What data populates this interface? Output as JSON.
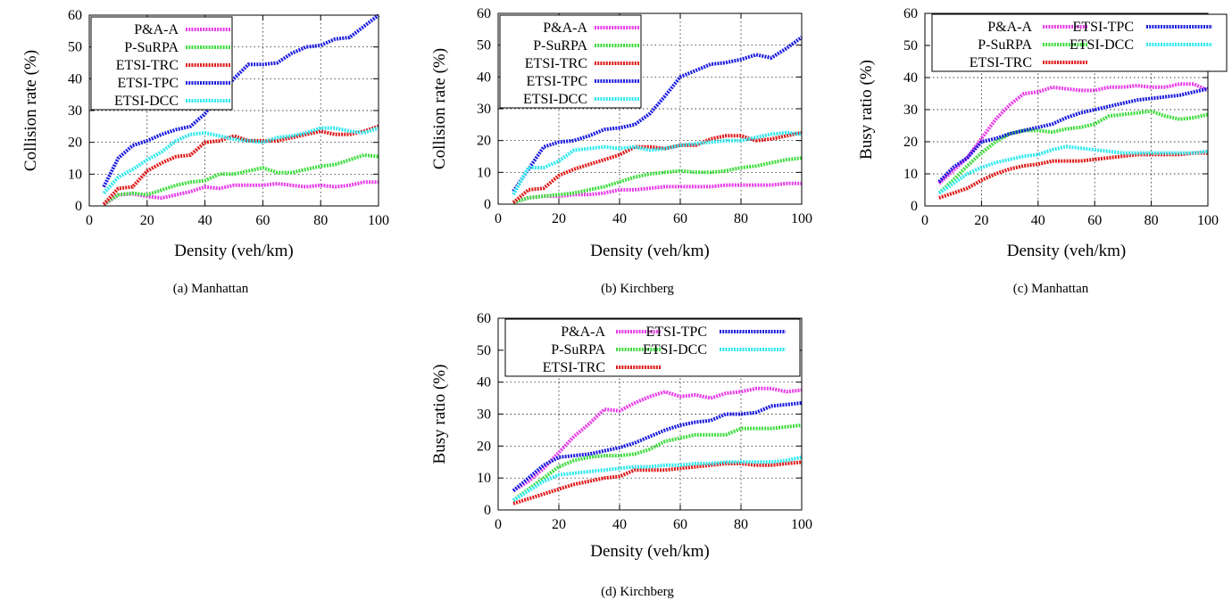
{
  "colors": {
    "P&A-A": "#e83be8",
    "P-SuRPA": "#3fdc3f",
    "ETSI-TRC": "#e01818",
    "ETSI-TPC": "#1a1adf",
    "ETSI-DCC": "#2fe8ee"
  },
  "chart_data": [
    {
      "type": "line",
      "caption": "(a) Manhattan",
      "xlabel": "Density (veh/km)",
      "ylabel": "Collision rate (%)",
      "xlim": [
        0,
        100
      ],
      "ylim": [
        0,
        60
      ],
      "xticks": [
        "0",
        "20",
        "40",
        "60",
        "80",
        "100"
      ],
      "yticks": [
        "0",
        "10",
        "20",
        "30",
        "40",
        "50",
        "60"
      ],
      "grid": true,
      "legend": "top-left, single column",
      "x": [
        5,
        10,
        15,
        20,
        25,
        30,
        35,
        40,
        45,
        50,
        55,
        60,
        65,
        70,
        75,
        80,
        85,
        90,
        95,
        100
      ],
      "series": [
        {
          "name": "P&A-A",
          "values": [
            0.3,
            3.5,
            3.8,
            3.0,
            2.5,
            3.5,
            4.5,
            6.0,
            5.5,
            6.5,
            6.5,
            6.5,
            7.0,
            6.5,
            6.0,
            6.5,
            6.0,
            6.5,
            7.5,
            7.5
          ]
        },
        {
          "name": "P-SuRPA",
          "values": [
            0.5,
            3.5,
            4.0,
            3.5,
            5.0,
            6.5,
            7.5,
            8.0,
            10.0,
            10.0,
            11.0,
            12.0,
            10.5,
            10.5,
            11.5,
            12.5,
            13.0,
            14.5,
            16.0,
            15.5
          ]
        },
        {
          "name": "ETSI-TRC",
          "values": [
            0.5,
            5.5,
            6.0,
            11.0,
            13.5,
            15.5,
            16.0,
            20.0,
            20.5,
            22.0,
            20.5,
            20.5,
            20.5,
            21.5,
            22.5,
            23.5,
            22.5,
            22.5,
            23.5,
            25.0
          ]
        },
        {
          "name": "ETSI-TPC",
          "values": [
            6.0,
            15.0,
            19.0,
            20.5,
            22.5,
            24.0,
            25.0,
            29.0,
            35.0,
            40.0,
            44.5,
            44.5,
            45.0,
            48.0,
            50.0,
            50.5,
            52.5,
            53.0,
            56.5,
            60.0
          ]
        },
        {
          "name": "ETSI-DCC",
          "values": [
            4.0,
            9.0,
            11.5,
            14.5,
            17.0,
            20.5,
            22.5,
            23.0,
            22.0,
            21.0,
            20.5,
            20.0,
            21.5,
            22.0,
            23.0,
            24.5,
            24.5,
            23.5,
            23.0,
            24.5
          ]
        }
      ]
    },
    {
      "type": "line",
      "caption": "(b) Kirchberg",
      "xlabel": "Density (veh/km)",
      "ylabel": "Collision rate (%)",
      "xlim": [
        0,
        100
      ],
      "ylim": [
        0,
        60
      ],
      "xticks": [
        "0",
        "20",
        "40",
        "60",
        "80",
        "100"
      ],
      "yticks": [
        "0",
        "10",
        "20",
        "30",
        "40",
        "50",
        "60"
      ],
      "grid": true,
      "legend": "top-left, single column",
      "x": [
        5,
        10,
        15,
        20,
        25,
        30,
        35,
        40,
        45,
        50,
        55,
        60,
        65,
        70,
        75,
        80,
        85,
        90,
        95,
        100
      ],
      "series": [
        {
          "name": "P&A-A",
          "values": [
            0.5,
            2.0,
            2.5,
            2.5,
            3.0,
            3.0,
            3.5,
            4.5,
            4.5,
            5.0,
            5.5,
            5.5,
            5.5,
            5.5,
            6.0,
            6.0,
            6.0,
            6.0,
            6.5,
            6.5
          ]
        },
        {
          "name": "P-SuRPA",
          "values": [
            0.5,
            2.0,
            2.5,
            3.0,
            3.5,
            4.5,
            5.5,
            7.0,
            8.5,
            9.5,
            10.0,
            10.5,
            10.0,
            10.0,
            10.5,
            11.5,
            12.0,
            13.0,
            14.0,
            14.5
          ]
        },
        {
          "name": "ETSI-TRC",
          "values": [
            0.5,
            4.5,
            5.0,
            9.0,
            11.0,
            12.5,
            14.0,
            15.5,
            18.0,
            18.0,
            17.5,
            18.5,
            18.5,
            20.5,
            21.5,
            21.5,
            20.0,
            20.5,
            21.5,
            22.5
          ]
        },
        {
          "name": "ETSI-TPC",
          "values": [
            4.0,
            11.0,
            18.0,
            19.5,
            20.0,
            21.5,
            23.5,
            24.0,
            25.0,
            28.5,
            34.0,
            40.0,
            42.0,
            44.0,
            44.5,
            45.5,
            47.0,
            46.0,
            49.0,
            52.5
          ]
        },
        {
          "name": "ETSI-DCC",
          "values": [
            3.0,
            11.5,
            11.5,
            13.5,
            17.0,
            17.5,
            18.0,
            17.5,
            18.0,
            17.0,
            17.5,
            18.5,
            19.0,
            19.5,
            20.0,
            20.0,
            21.0,
            22.0,
            22.5,
            22.0
          ]
        }
      ]
    },
    {
      "type": "line",
      "caption": "(c) Manhattan",
      "xlabel": "Density (veh/km)",
      "ylabel": "Busy ratio (%)",
      "xlim": [
        0,
        100
      ],
      "ylim": [
        0,
        60
      ],
      "xticks": [
        "0",
        "20",
        "40",
        "60",
        "80",
        "100"
      ],
      "yticks": [
        "0",
        "10",
        "20",
        "30",
        "40",
        "50",
        "60"
      ],
      "grid": true,
      "legend": "top, two columns",
      "x": [
        5,
        10,
        15,
        20,
        25,
        30,
        35,
        40,
        45,
        50,
        55,
        60,
        65,
        70,
        75,
        80,
        85,
        90,
        95,
        100
      ],
      "series": [
        {
          "name": "P&A-A",
          "values": [
            7.0,
            11.0,
            15.0,
            21.0,
            27.0,
            31.5,
            35.0,
            35.5,
            37.0,
            36.5,
            36.0,
            36.0,
            37.0,
            37.0,
            37.5,
            37.0,
            37.0,
            38.0,
            38.0,
            36.0
          ]
        },
        {
          "name": "P-SuRPA",
          "values": [
            4.0,
            8.0,
            12.5,
            16.5,
            20.0,
            22.5,
            23.5,
            23.5,
            23.0,
            24.0,
            24.5,
            25.5,
            28.0,
            28.5,
            29.0,
            29.5,
            28.0,
            27.0,
            27.5,
            28.5
          ]
        },
        {
          "name": "ETSI-TRC",
          "values": [
            2.5,
            4.0,
            5.5,
            8.0,
            10.0,
            11.5,
            12.5,
            13.0,
            14.0,
            14.0,
            14.0,
            14.5,
            15.0,
            15.5,
            16.0,
            16.0,
            16.0,
            16.0,
            16.5,
            16.5
          ]
        },
        {
          "name": "ETSI-TPC",
          "values": [
            7.5,
            12.0,
            15.0,
            20.0,
            21.0,
            22.5,
            23.5,
            24.5,
            25.5,
            27.5,
            29.0,
            30.0,
            31.0,
            32.0,
            33.0,
            33.5,
            34.0,
            34.5,
            35.5,
            36.5
          ]
        },
        {
          "name": "ETSI-DCC",
          "values": [
            4.0,
            7.0,
            10.0,
            12.0,
            13.5,
            14.5,
            15.5,
            16.0,
            17.5,
            18.5,
            18.0,
            17.5,
            17.0,
            16.5,
            16.5,
            16.5,
            16.5,
            16.5,
            16.5,
            17.0
          ]
        }
      ]
    },
    {
      "type": "line",
      "caption": "(d) Kirchberg",
      "xlabel": "Density (veh/km)",
      "ylabel": "Busy ratio (%)",
      "xlim": [
        0,
        100
      ],
      "ylim": [
        0,
        60
      ],
      "xticks": [
        "0",
        "20",
        "40",
        "60",
        "80",
        "100"
      ],
      "yticks": [
        "0",
        "10",
        "20",
        "30",
        "40",
        "50",
        "60"
      ],
      "grid": true,
      "legend": "top, two columns",
      "x": [
        5,
        10,
        15,
        20,
        25,
        30,
        35,
        40,
        45,
        50,
        55,
        60,
        65,
        70,
        75,
        80,
        85,
        90,
        95,
        100
      ],
      "series": [
        {
          "name": "P&A-A",
          "values": [
            6.0,
            9.0,
            13.0,
            18.0,
            23.0,
            27.0,
            31.5,
            31.0,
            33.5,
            35.5,
            37.0,
            35.5,
            36.0,
            35.0,
            36.5,
            37.0,
            38.0,
            38.0,
            37.0,
            37.5
          ]
        },
        {
          "name": "P-SuRPA",
          "values": [
            3.0,
            6.5,
            10.0,
            13.5,
            15.5,
            16.5,
            17.0,
            17.0,
            17.5,
            19.0,
            21.5,
            22.5,
            23.5,
            23.5,
            23.5,
            25.5,
            25.5,
            25.5,
            26.0,
            26.5
          ]
        },
        {
          "name": "ETSI-TRC",
          "values": [
            2.0,
            3.5,
            5.0,
            6.5,
            8.0,
            9.0,
            10.0,
            10.5,
            12.5,
            12.5,
            12.5,
            13.0,
            13.5,
            14.0,
            14.5,
            14.5,
            14.0,
            14.0,
            14.5,
            15.0
          ]
        },
        {
          "name": "ETSI-TPC",
          "values": [
            6.0,
            10.0,
            14.0,
            16.5,
            17.0,
            17.5,
            18.5,
            19.5,
            21.0,
            23.0,
            25.0,
            26.5,
            27.5,
            28.0,
            30.0,
            30.0,
            30.5,
            32.5,
            33.0,
            33.5
          ]
        },
        {
          "name": "ETSI-DCC",
          "values": [
            3.0,
            6.0,
            9.0,
            11.0,
            11.5,
            12.0,
            12.5,
            13.0,
            13.5,
            13.5,
            14.0,
            14.0,
            14.5,
            14.5,
            15.0,
            15.0,
            15.0,
            15.0,
            15.5,
            16.5
          ]
        }
      ]
    }
  ]
}
